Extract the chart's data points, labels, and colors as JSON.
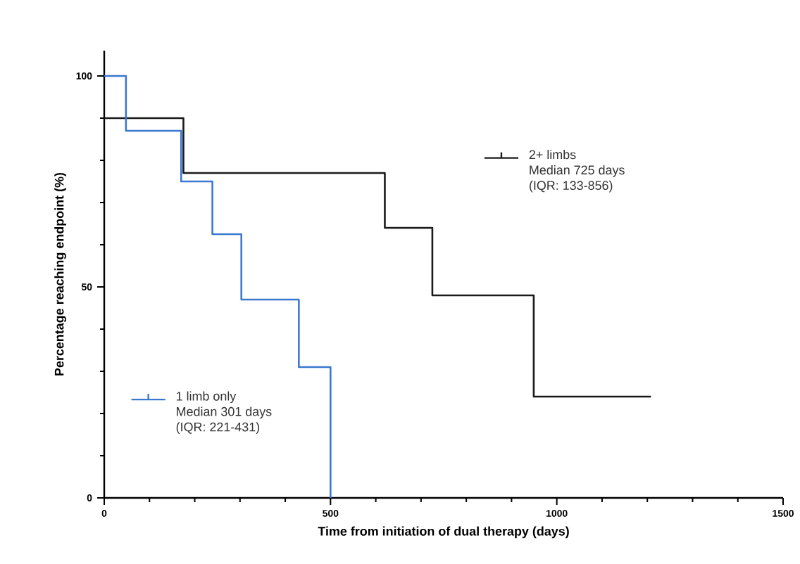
{
  "chart_data": {
    "type": "step",
    "xlabel": "Time from initiation of dual therapy (days)",
    "ylabel": "Percentage reaching endpoint (%)",
    "xlim": [
      0,
      1500
    ],
    "xticks": [
      0,
      500,
      1000,
      1500
    ],
    "ylim": [
      0,
      106
    ],
    "yticks": [
      0,
      50,
      100
    ],
    "series": [
      {
        "name": "2+ limbs",
        "color": "#1a1a1a",
        "x": [
          0,
          175,
          620,
          725,
          949,
          1208
        ],
        "values": [
          90,
          77,
          64,
          48,
          24,
          24
        ]
      },
      {
        "name": "1 limb only",
        "color": "#3a78d0",
        "x": [
          0,
          48,
          170,
          239,
          303,
          430,
          500
        ],
        "values": [
          100,
          87,
          75,
          62.5,
          47,
          31,
          0
        ]
      }
    ],
    "annotations": [
      "Median 725 days",
      "(IQR: 133-856)",
      "Median 301 days",
      "(IQR: 221-431)"
    ],
    "legend": "left"
  }
}
